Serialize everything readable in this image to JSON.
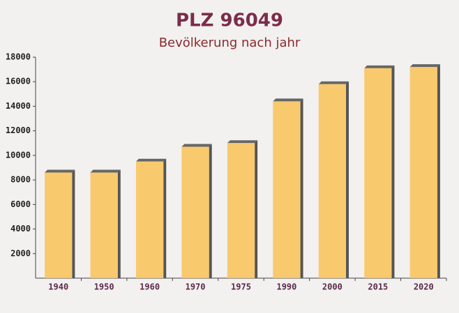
{
  "chart_data": {
    "type": "bar",
    "title": "PLZ 96049",
    "subtitle": "Bevölkerung nach jahr",
    "categories": [
      "1940",
      "1950",
      "1960",
      "1970",
      "1975",
      "1990",
      "2000",
      "2015",
      "2020"
    ],
    "values": [
      8600,
      8600,
      9500,
      10700,
      11000,
      14400,
      15800,
      17100,
      17200
    ],
    "color": "#f8c55e",
    "ylim": [
      0,
      18000
    ],
    "yticks": [
      2000,
      4000,
      6000,
      8000,
      10000,
      12000,
      14000,
      16000,
      18000
    ],
    "grid": false
  }
}
